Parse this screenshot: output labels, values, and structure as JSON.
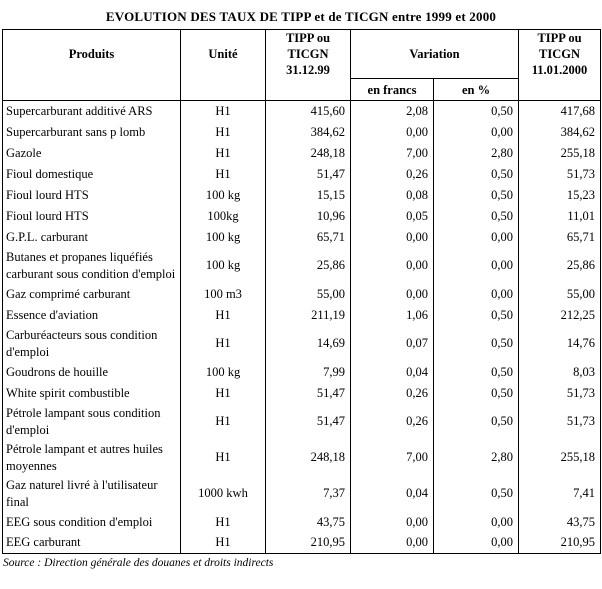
{
  "title": "EVOLUTION DES TAUX DE TIPP et de TICGN entre 1999 et 2000",
  "source": "Source : Direction générale des douanes et droits indirects",
  "table": {
    "headers": {
      "produits": "Produits",
      "unite": "Unité",
      "tipp_311299": "TIPP ou\nTICGN\n31.12.99",
      "variation": "Variation",
      "en_francs": "en francs",
      "en_pct": "en %",
      "tipp_11012000": "TIPP ou\nTICGN\n11.01.2000"
    },
    "rows": [
      {
        "produit": "Supercarburant additivé ARS",
        "unite": "H1",
        "tipp_311299": "415,60",
        "variation_francs": "2,08",
        "variation_pct": "0,50",
        "tipp_11012000": "417,68"
      },
      {
        "produit": "Supercarburant sans p lomb",
        "unite": "H1",
        "tipp_311299": "384,62",
        "variation_francs": "0,00",
        "variation_pct": "0,00",
        "tipp_11012000": "384,62"
      },
      {
        "produit": "Gazole",
        "unite": "H1",
        "tipp_311299": "248,18",
        "variation_francs": "7,00",
        "variation_pct": "2,80",
        "tipp_11012000": "255,18"
      },
      {
        "produit": "Fioul domestique",
        "unite": "H1",
        "tipp_311299": "51,47",
        "variation_francs": "0,26",
        "variation_pct": "0,50",
        "tipp_11012000": "51,73"
      },
      {
        "produit": "Fioul lourd HTS",
        "unite": "100 kg",
        "tipp_311299": "15,15",
        "variation_francs": "0,08",
        "variation_pct": "0,50",
        "tipp_11012000": "15,23"
      },
      {
        "produit": "Fioul lourd HTS",
        "unite": "100kg",
        "tipp_311299": "10,96",
        "variation_francs": "0,05",
        "variation_pct": "0,50",
        "tipp_11012000": "11,01"
      },
      {
        "produit": "G.P.L. carburant",
        "unite": "100 kg",
        "tipp_311299": "65,71",
        "variation_francs": "0,00",
        "variation_pct": "0,00",
        "tipp_11012000": "65,71"
      },
      {
        "produit": "Butanes et propanes liquéfiés carburant sous condition d'emploi",
        "unite": "100 kg",
        "tipp_311299": "25,86",
        "variation_francs": "0,00",
        "variation_pct": "0,00",
        "tipp_11012000": "25,86"
      },
      {
        "produit": "Gaz comprimé carburant",
        "unite": "100 m3",
        "tipp_311299": "55,00",
        "variation_francs": "0,00",
        "variation_pct": "0,00",
        "tipp_11012000": "55,00"
      },
      {
        "produit": "Essence d'aviation",
        "unite": "H1",
        "tipp_311299": "211,19",
        "variation_francs": "1,06",
        "variation_pct": "0,50",
        "tipp_11012000": "212,25"
      },
      {
        "produit": "Carburéacteurs sous condition d'emploi",
        "unite": "H1",
        "tipp_311299": "14,69",
        "variation_francs": "0,07",
        "variation_pct": "0,50",
        "tipp_11012000": "14,76"
      },
      {
        "produit": "Goudrons de houille",
        "unite": "100 kg",
        "tipp_311299": "7,99",
        "variation_francs": "0,04",
        "variation_pct": "0,50",
        "tipp_11012000": "8,03"
      },
      {
        "produit": "White spirit combustible",
        "unite": "H1",
        "tipp_311299": "51,47",
        "variation_francs": "0,26",
        "variation_pct": "0,50",
        "tipp_11012000": "51,73"
      },
      {
        "produit": "Pétrole lampant sous condition d'emploi",
        "unite": "H1",
        "tipp_311299": "51,47",
        "variation_francs": "0,26",
        "variation_pct": "0,50",
        "tipp_11012000": "51,73"
      },
      {
        "produit": "Pétrole lampant et autres huiles moyennes",
        "unite": "H1",
        "tipp_311299": "248,18",
        "variation_francs": "7,00",
        "variation_pct": "2,80",
        "tipp_11012000": "255,18"
      },
      {
        "produit": "Gaz naturel livré à l'utilisateur final",
        "unite": "1000 kwh",
        "tipp_311299": "7,37",
        "variation_francs": "0,04",
        "variation_pct": "0,50",
        "tipp_11012000": "7,41"
      },
      {
        "produit": "EEG sous condition d'emploi",
        "unite": "H1",
        "tipp_311299": "43,75",
        "variation_francs": "0,00",
        "variation_pct": "0,00",
        "tipp_11012000": "43,75"
      },
      {
        "produit": "EEG carburant",
        "unite": "H1",
        "tipp_311299": "210,95",
        "variation_francs": "0,00",
        "variation_pct": "0,00",
        "tipp_11012000": "210,95"
      }
    ]
  }
}
